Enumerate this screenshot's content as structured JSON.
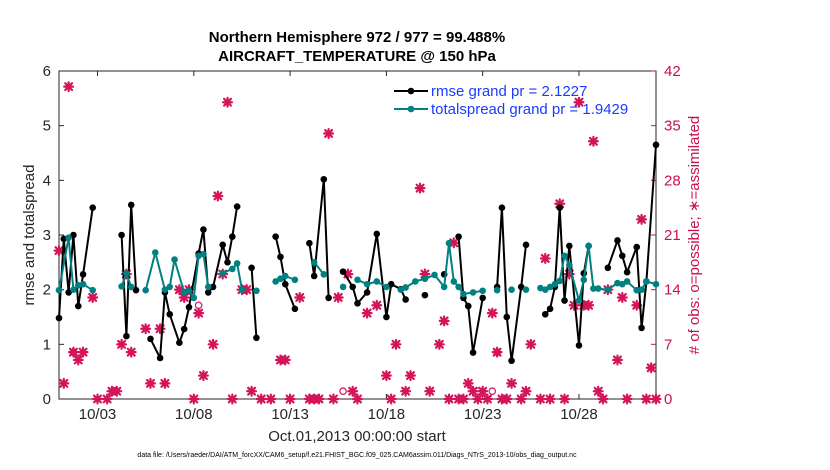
{
  "chart_data": {
    "type": "line",
    "title": "Northern Hemisphere 972 / 977 = 99.488%",
    "subtitle": "AIRCRAFT_TEMPERATURE @ 150 hPa",
    "xlabel": "Oct.01,2013 00:00:00 start",
    "ylabel": "rmse and totalspread",
    "ylabel_right": "# of obs: o=possible; ∗=assimilated",
    "footer": "data file: /Users/raeder/DAI/ATM_forcXX/CAM6_setup/f.e21.FHIST_BGC.f09_025.CAM6assim.011/Diags_NTrS_2013-10/obs_diag_output.nc",
    "xlim": [
      1.0,
      32.0
    ],
    "ylim": [
      0,
      6
    ],
    "ylim_right": [
      0,
      42
    ],
    "x_ticks": [
      3,
      8,
      13,
      18,
      23,
      28
    ],
    "x_tick_labels": [
      "10/03",
      "10/08",
      "10/13",
      "10/18",
      "10/23",
      "10/28"
    ],
    "y_ticks": [
      0,
      1,
      2,
      3,
      4,
      5,
      6
    ],
    "y_ticks_right": [
      0,
      7,
      14,
      21,
      28,
      35,
      42
    ],
    "legend": [
      {
        "label": "rmse grand pr = 2.1227",
        "color": "#000000"
      },
      {
        "label": "totalspread grand pr = 1.9429",
        "color": "#008080"
      }
    ],
    "series": [
      {
        "name": "rmse",
        "color": "#000000",
        "points": [
          {
            "x": 1.0,
            "y": 1.48
          },
          {
            "x": 1.25,
            "y": 2.93
          },
          {
            "x": 1.5,
            "y": 1.95
          },
          {
            "x": 1.75,
            "y": 3.0
          },
          {
            "x": 2.0,
            "y": 1.7
          },
          {
            "x": 2.25,
            "y": 2.28
          },
          {
            "x": 2.75,
            "y": 3.5
          },
          {
            "x": 4.25,
            "y": 3.0
          },
          {
            "x": 4.5,
            "y": 1.15
          },
          {
            "x": 4.75,
            "y": 3.55
          },
          {
            "x": 5.0,
            "y": 1.99
          },
          {
            "x": 5.75,
            "y": 1.1
          },
          {
            "x": 6.25,
            "y": 0.75
          },
          {
            "x": 6.5,
            "y": 1.95
          },
          {
            "x": 6.75,
            "y": 1.55
          },
          {
            "x": 7.25,
            "y": 1.03
          },
          {
            "x": 7.5,
            "y": 1.28
          },
          {
            "x": 7.75,
            "y": 1.68
          },
          {
            "x": 8.25,
            "y": 2.66
          },
          {
            "x": 8.5,
            "y": 3.1
          },
          {
            "x": 8.75,
            "y": 1.95
          },
          {
            "x": 9.0,
            "y": 2.05
          },
          {
            "x": 9.5,
            "y": 2.82
          },
          {
            "x": 9.75,
            "y": 2.5
          },
          {
            "x": 10.0,
            "y": 2.97
          },
          {
            "x": 10.25,
            "y": 3.52
          },
          {
            "x": 11.0,
            "y": 2.4
          },
          {
            "x": 11.25,
            "y": 1.12
          },
          {
            "x": 12.25,
            "y": 2.97
          },
          {
            "x": 12.5,
            "y": 2.6
          },
          {
            "x": 12.75,
            "y": 2.1
          },
          {
            "x": 13.25,
            "y": 1.65
          },
          {
            "x": 14.0,
            "y": 2.85
          },
          {
            "x": 14.25,
            "y": 2.25
          },
          {
            "x": 14.75,
            "y": 4.02
          },
          {
            "x": 15.0,
            "y": 1.85
          },
          {
            "x": 15.75,
            "y": 2.33
          },
          {
            "x": 16.25,
            "y": 2.05
          },
          {
            "x": 16.5,
            "y": 1.75
          },
          {
            "x": 17.0,
            "y": 1.95
          },
          {
            "x": 17.5,
            "y": 3.02
          },
          {
            "x": 18.0,
            "y": 1.5
          },
          {
            "x": 18.25,
            "y": 2.1
          },
          {
            "x": 18.75,
            "y": 2.01
          },
          {
            "x": 19.0,
            "y": 1.82
          },
          {
            "x": 20.0,
            "y": 1.9
          },
          {
            "x": 21.0,
            "y": 2.28
          },
          {
            "x": 21.75,
            "y": 2.97
          },
          {
            "x": 22.0,
            "y": 1.85
          },
          {
            "x": 22.25,
            "y": 1.7
          },
          {
            "x": 22.5,
            "y": 0.85
          },
          {
            "x": 23.0,
            "y": 1.85
          },
          {
            "x": 23.75,
            "y": 2.05
          },
          {
            "x": 24.0,
            "y": 3.5
          },
          {
            "x": 24.25,
            "y": 1.5
          },
          {
            "x": 24.5,
            "y": 0.7
          },
          {
            "x": 25.0,
            "y": 2.05
          },
          {
            "x": 25.25,
            "y": 2.82
          },
          {
            "x": 26.25,
            "y": 1.55
          },
          {
            "x": 26.5,
            "y": 1.65
          },
          {
            "x": 26.75,
            "y": 2.05
          },
          {
            "x": 27.0,
            "y": 3.5
          },
          {
            "x": 27.25,
            "y": 1.8
          },
          {
            "x": 27.5,
            "y": 2.8
          },
          {
            "x": 28.0,
            "y": 0.98
          },
          {
            "x": 28.25,
            "y": 2.3
          },
          {
            "x": 28.5,
            "y": 2.8
          },
          {
            "x": 29.5,
            "y": 2.4
          },
          {
            "x": 30.0,
            "y": 2.9
          },
          {
            "x": 30.25,
            "y": 2.62
          },
          {
            "x": 30.5,
            "y": 2.32
          },
          {
            "x": 31.0,
            "y": 2.78
          },
          {
            "x": 31.25,
            "y": 1.3
          },
          {
            "x": 31.5,
            "y": 2.15
          },
          {
            "x": 32.0,
            "y": 4.65
          }
        ]
      },
      {
        "name": "totalspread",
        "color": "#008080",
        "points": [
          {
            "x": 1.0,
            "y": 1.99
          },
          {
            "x": 1.5,
            "y": 2.95
          },
          {
            "x": 1.75,
            "y": 2.0
          },
          {
            "x": 2.0,
            "y": 2.08
          },
          {
            "x": 2.25,
            "y": 2.1
          },
          {
            "x": 2.75,
            "y": 1.99
          },
          {
            "x": 4.25,
            "y": 2.06
          },
          {
            "x": 4.5,
            "y": 2.3
          },
          {
            "x": 4.75,
            "y": 2.05
          },
          {
            "x": 5.5,
            "y": 1.99
          },
          {
            "x": 6.0,
            "y": 2.68
          },
          {
            "x": 6.5,
            "y": 2.0
          },
          {
            "x": 6.75,
            "y": 2.05
          },
          {
            "x": 7.0,
            "y": 2.55
          },
          {
            "x": 7.5,
            "y": 1.95
          },
          {
            "x": 7.75,
            "y": 1.98
          },
          {
            "x": 8.0,
            "y": 1.85
          },
          {
            "x": 8.25,
            "y": 2.62
          },
          {
            "x": 8.5,
            "y": 2.65
          },
          {
            "x": 8.75,
            "y": 2.05
          },
          {
            "x": 9.5,
            "y": 2.3
          },
          {
            "x": 10.0,
            "y": 2.38
          },
          {
            "x": 10.25,
            "y": 2.48
          },
          {
            "x": 10.5,
            "y": 2.0
          },
          {
            "x": 11.25,
            "y": 1.98
          },
          {
            "x": 12.25,
            "y": 2.15
          },
          {
            "x": 12.5,
            "y": 2.2
          },
          {
            "x": 12.75,
            "y": 2.25
          },
          {
            "x": 13.25,
            "y": 2.18
          },
          {
            "x": 14.25,
            "y": 2.5
          },
          {
            "x": 14.75,
            "y": 2.28
          },
          {
            "x": 15.75,
            "y": 2.05
          },
          {
            "x": 16.5,
            "y": 2.18
          },
          {
            "x": 17.0,
            "y": 2.1
          },
          {
            "x": 17.5,
            "y": 2.15
          },
          {
            "x": 18.0,
            "y": 2.05
          },
          {
            "x": 18.75,
            "y": 2.0
          },
          {
            "x": 19.0,
            "y": 2.04
          },
          {
            "x": 19.5,
            "y": 2.15
          },
          {
            "x": 20.0,
            "y": 2.2
          },
          {
            "x": 20.5,
            "y": 2.27
          },
          {
            "x": 21.0,
            "y": 2.05
          },
          {
            "x": 21.25,
            "y": 2.85
          },
          {
            "x": 21.5,
            "y": 2.15
          },
          {
            "x": 21.75,
            "y": 2.05
          },
          {
            "x": 22.0,
            "y": 1.92
          },
          {
            "x": 22.5,
            "y": 1.95
          },
          {
            "x": 23.0,
            "y": 1.98
          },
          {
            "x": 23.75,
            "y": 1.99
          },
          {
            "x": 24.5,
            "y": 2.0
          },
          {
            "x": 25.25,
            "y": 2.0
          },
          {
            "x": 26.0,
            "y": 2.03
          },
          {
            "x": 26.25,
            "y": 2.0
          },
          {
            "x": 26.5,
            "y": 2.05
          },
          {
            "x": 26.75,
            "y": 2.1
          },
          {
            "x": 27.0,
            "y": 2.16
          },
          {
            "x": 27.25,
            "y": 2.62
          },
          {
            "x": 27.5,
            "y": 2.45
          },
          {
            "x": 28.0,
            "y": 1.8
          },
          {
            "x": 28.25,
            "y": 2.18
          },
          {
            "x": 28.5,
            "y": 2.8
          },
          {
            "x": 28.75,
            "y": 2.02
          },
          {
            "x": 29.0,
            "y": 2.02
          },
          {
            "x": 29.5,
            "y": 2.0
          },
          {
            "x": 30.0,
            "y": 2.12
          },
          {
            "x": 30.25,
            "y": 2.1
          },
          {
            "x": 30.5,
            "y": 2.15
          },
          {
            "x": 31.0,
            "y": 1.99
          },
          {
            "x": 31.25,
            "y": 2.0
          },
          {
            "x": 31.5,
            "y": 2.15
          },
          {
            "x": 32.0,
            "y": 2.1
          }
        ]
      }
    ],
    "obs_possible": [
      {
        "x": 1.75,
        "y": 6
      },
      {
        "x": 8.25,
        "y": 12
      },
      {
        "x": 15.75,
        "y": 1
      },
      {
        "x": 22.75,
        "y": 1
      },
      {
        "x": 23.75,
        "y": 6
      },
      {
        "x": 23.5,
        "y": 1
      }
    ],
    "obs_assimilated": [
      {
        "x": 1.0,
        "y": 19
      },
      {
        "x": 1.25,
        "y": 2
      },
      {
        "x": 1.5,
        "y": 40
      },
      {
        "x": 1.75,
        "y": 6
      },
      {
        "x": 2.0,
        "y": 5
      },
      {
        "x": 2.25,
        "y": 6
      },
      {
        "x": 2.75,
        "y": 13
      },
      {
        "x": 3.0,
        "y": 0
      },
      {
        "x": 3.5,
        "y": 0
      },
      {
        "x": 3.75,
        "y": 1
      },
      {
        "x": 4.0,
        "y": 1
      },
      {
        "x": 4.25,
        "y": 7
      },
      {
        "x": 4.5,
        "y": 16
      },
      {
        "x": 4.75,
        "y": 6
      },
      {
        "x": 5.5,
        "y": 9
      },
      {
        "x": 5.75,
        "y": 2
      },
      {
        "x": 6.25,
        "y": 9
      },
      {
        "x": 6.5,
        "y": 2
      },
      {
        "x": 7.25,
        "y": 14
      },
      {
        "x": 7.5,
        "y": 13
      },
      {
        "x": 7.75,
        "y": 14
      },
      {
        "x": 8.0,
        "y": 0
      },
      {
        "x": 8.25,
        "y": 11
      },
      {
        "x": 8.5,
        "y": 3
      },
      {
        "x": 9.0,
        "y": 7
      },
      {
        "x": 9.25,
        "y": 26
      },
      {
        "x": 9.5,
        "y": 16
      },
      {
        "x": 9.75,
        "y": 38
      },
      {
        "x": 10.0,
        "y": 0
      },
      {
        "x": 10.5,
        "y": 14
      },
      {
        "x": 10.75,
        "y": 14
      },
      {
        "x": 11.0,
        "y": 1
      },
      {
        "x": 11.5,
        "y": 0
      },
      {
        "x": 12.0,
        "y": 0
      },
      {
        "x": 12.5,
        "y": 5
      },
      {
        "x": 12.75,
        "y": 5
      },
      {
        "x": 13.0,
        "y": 0
      },
      {
        "x": 13.5,
        "y": 13
      },
      {
        "x": 14.0,
        "y": 0
      },
      {
        "x": 14.25,
        "y": 0
      },
      {
        "x": 14.5,
        "y": 0
      },
      {
        "x": 15.0,
        "y": 34
      },
      {
        "x": 15.25,
        "y": 0
      },
      {
        "x": 15.5,
        "y": 13
      },
      {
        "x": 16.0,
        "y": 16
      },
      {
        "x": 16.25,
        "y": 1
      },
      {
        "x": 16.5,
        "y": 0
      },
      {
        "x": 17.0,
        "y": 11
      },
      {
        "x": 17.5,
        "y": 12
      },
      {
        "x": 18.0,
        "y": 3
      },
      {
        "x": 18.25,
        "y": 0
      },
      {
        "x": 18.5,
        "y": 7
      },
      {
        "x": 19.0,
        "y": 1
      },
      {
        "x": 19.25,
        "y": 3
      },
      {
        "x": 19.75,
        "y": 27
      },
      {
        "x": 20.0,
        "y": 16
      },
      {
        "x": 20.25,
        "y": 1
      },
      {
        "x": 20.75,
        "y": 7
      },
      {
        "x": 21.0,
        "y": 10
      },
      {
        "x": 21.25,
        "y": 0
      },
      {
        "x": 21.5,
        "y": 20
      },
      {
        "x": 21.75,
        "y": 0
      },
      {
        "x": 22.0,
        "y": 0
      },
      {
        "x": 22.25,
        "y": 2
      },
      {
        "x": 22.5,
        "y": 1
      },
      {
        "x": 22.75,
        "y": 0
      },
      {
        "x": 23.0,
        "y": 1
      },
      {
        "x": 23.25,
        "y": 0
      },
      {
        "x": 23.5,
        "y": 11
      },
      {
        "x": 23.75,
        "y": 6
      },
      {
        "x": 24.0,
        "y": 0
      },
      {
        "x": 24.25,
        "y": 0
      },
      {
        "x": 24.5,
        "y": 2
      },
      {
        "x": 25.0,
        "y": 0
      },
      {
        "x": 25.25,
        "y": 1
      },
      {
        "x": 25.5,
        "y": 7
      },
      {
        "x": 26.0,
        "y": 0
      },
      {
        "x": 26.25,
        "y": 18
      },
      {
        "x": 26.5,
        "y": 0
      },
      {
        "x": 27.0,
        "y": 25
      },
      {
        "x": 27.25,
        "y": 0
      },
      {
        "x": 27.5,
        "y": 16
      },
      {
        "x": 27.75,
        "y": 12
      },
      {
        "x": 28.0,
        "y": 38
      },
      {
        "x": 28.25,
        "y": 12
      },
      {
        "x": 28.5,
        "y": 12
      },
      {
        "x": 28.75,
        "y": 33
      },
      {
        "x": 29.0,
        "y": 1
      },
      {
        "x": 29.25,
        "y": 0
      },
      {
        "x": 29.5,
        "y": 14
      },
      {
        "x": 30.0,
        "y": 5
      },
      {
        "x": 30.25,
        "y": 13
      },
      {
        "x": 30.5,
        "y": 0
      },
      {
        "x": 31.0,
        "y": 12
      },
      {
        "x": 31.25,
        "y": 23
      },
      {
        "x": 31.5,
        "y": 0
      },
      {
        "x": 31.75,
        "y": 4
      },
      {
        "x": 32.0,
        "y": 0
      }
    ]
  }
}
